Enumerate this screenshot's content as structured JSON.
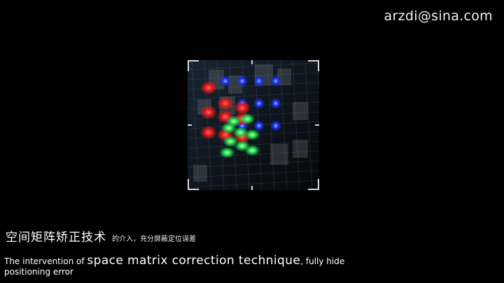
{
  "header": {
    "email": "arzdi@sina.com"
  },
  "caption": {
    "cn_main": "空间矩阵矫正技术",
    "cn_sub": "的介入，充分屏蔽定位误差",
    "en_prefix": "The intervention of ",
    "en_highlight": "space matrix correction technique",
    "en_suffix": ", fully hide",
    "en_line2": "positioning error"
  },
  "colors": {
    "background": "#000000",
    "red_dot": "#ff3030",
    "green_dot": "#30ff60",
    "blue_dot": "#3050ff",
    "grid_line": "#4a7fa0"
  },
  "matrix": {
    "blue_dots": [
      [
        1,
        0
      ],
      [
        2,
        0
      ],
      [
        3,
        0
      ],
      [
        4,
        0
      ],
      [
        2,
        1
      ],
      [
        3,
        1
      ],
      [
        4,
        1
      ],
      [
        2,
        2
      ],
      [
        3,
        2
      ],
      [
        4,
        2
      ]
    ],
    "red_dots": [
      [
        0,
        0.3
      ],
      [
        1,
        1
      ],
      [
        2,
        1.2
      ],
      [
        0,
        1.4
      ],
      [
        1,
        1.6
      ],
      [
        2,
        1.7
      ],
      [
        0,
        2.3
      ],
      [
        1,
        2.4
      ],
      [
        2,
        2.5
      ]
    ],
    "green_dots": [
      [
        1.5,
        1.8
      ],
      [
        2.3,
        1.7
      ],
      [
        1.2,
        2.1
      ],
      [
        1.9,
        2.3
      ],
      [
        2.6,
        2.4
      ],
      [
        1.3,
        2.7
      ],
      [
        2,
        2.9
      ],
      [
        2.6,
        3.1
      ],
      [
        1.1,
        3.2
      ]
    ]
  }
}
